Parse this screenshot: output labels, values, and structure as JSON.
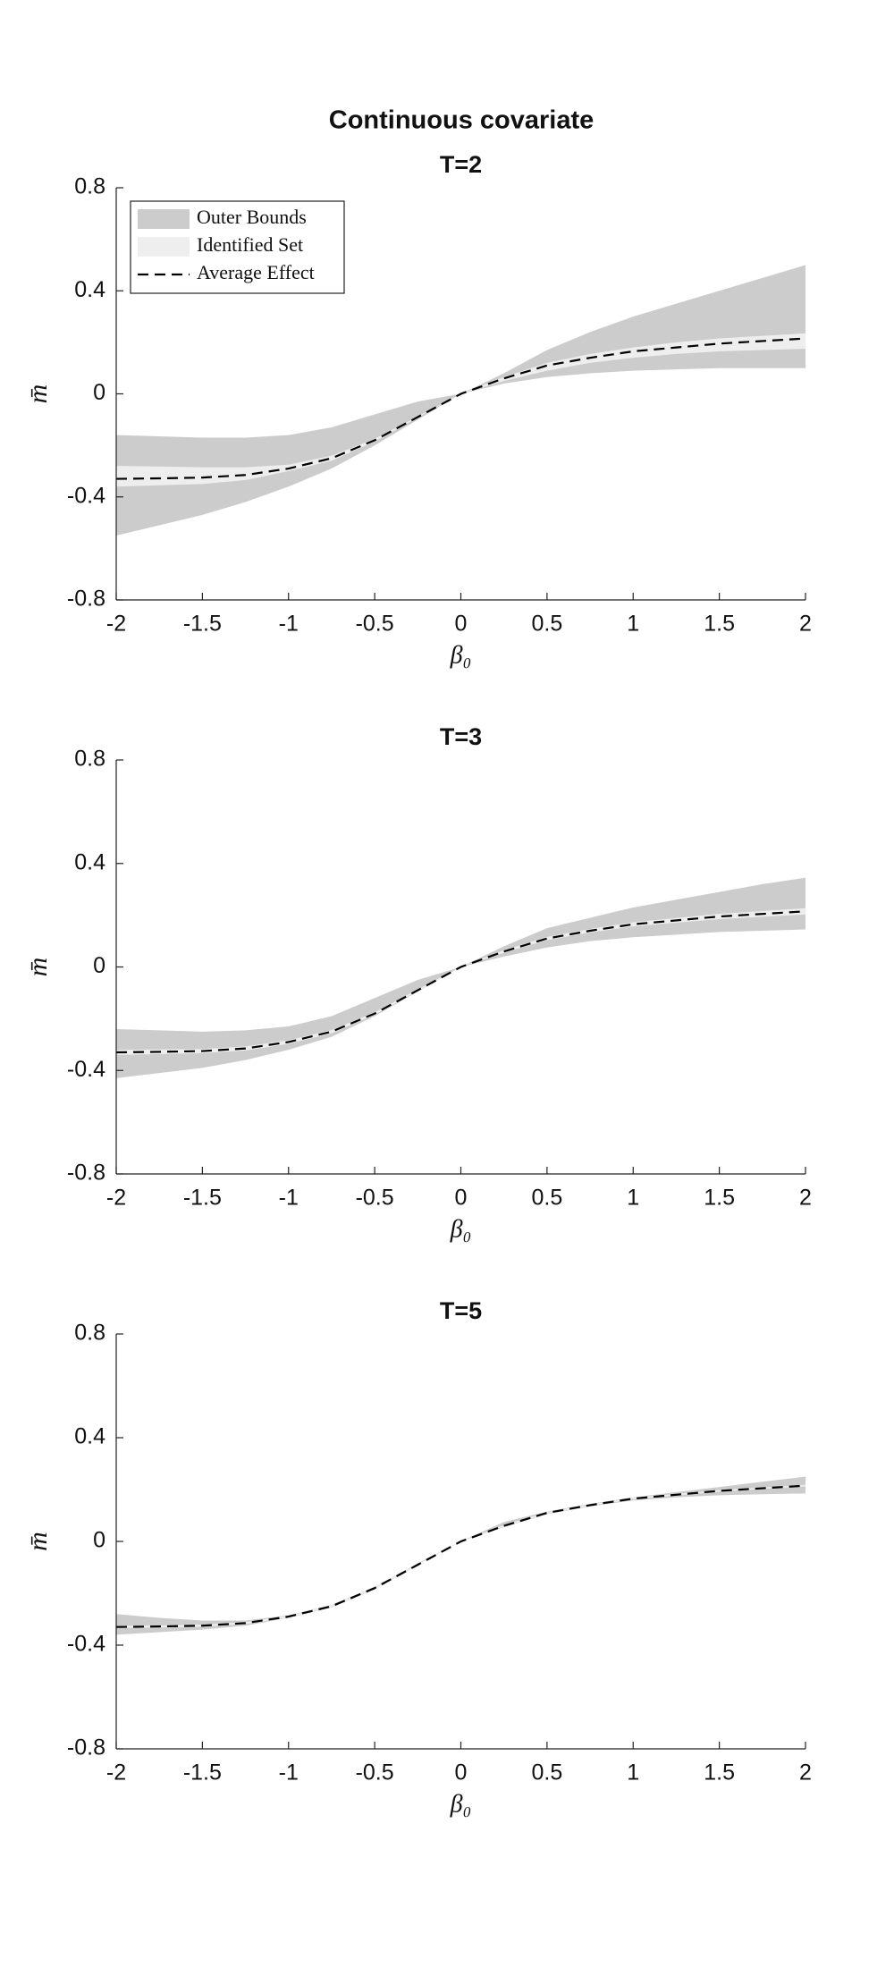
{
  "title": "Continuous covariate",
  "chart_data": [
    {
      "type": "band",
      "title": "T=2",
      "xlabel": "β₀",
      "ylabel": "m̄",
      "x": [
        -2,
        -1.75,
        -1.5,
        -1.25,
        -1,
        -0.75,
        -0.5,
        -0.25,
        0,
        0.25,
        0.5,
        0.75,
        1,
        1.25,
        1.5,
        1.75,
        2
      ],
      "xlim": [
        -2,
        2
      ],
      "xticks": [
        -2,
        -1.5,
        -1,
        -0.5,
        0,
        0.5,
        1,
        1.5,
        2
      ],
      "ylim": [
        -0.8,
        0.8
      ],
      "yticks": [
        -0.8,
        -0.4,
        0,
        0.4,
        0.8
      ],
      "legend": "upper left",
      "series": [
        {
          "name": "Outer Bounds",
          "type": "band",
          "color": "#cccccc",
          "lower": [
            -0.55,
            -0.51,
            -0.47,
            -0.42,
            -0.36,
            -0.29,
            -0.2,
            -0.1,
            0,
            0.04,
            0.065,
            0.08,
            0.09,
            0.095,
            0.1,
            0.1,
            0.1
          ],
          "upper": [
            -0.16,
            -0.165,
            -0.17,
            -0.17,
            -0.16,
            -0.13,
            -0.08,
            -0.03,
            0,
            0.08,
            0.17,
            0.24,
            0.3,
            0.35,
            0.4,
            0.45,
            0.5
          ]
        },
        {
          "name": "Identified Set",
          "type": "band",
          "color": "#eeeeee",
          "lower": [
            -0.36,
            -0.355,
            -0.35,
            -0.335,
            -0.3,
            -0.26,
            -0.185,
            -0.092,
            0,
            0.05,
            0.09,
            0.12,
            0.14,
            0.155,
            0.165,
            0.17,
            0.175
          ],
          "upper": [
            -0.28,
            -0.282,
            -0.285,
            -0.285,
            -0.275,
            -0.24,
            -0.175,
            -0.088,
            0,
            0.065,
            0.12,
            0.155,
            0.18,
            0.2,
            0.215,
            0.225,
            0.235
          ]
        },
        {
          "name": "Average Effect",
          "type": "line",
          "color": "#000000",
          "dashed": true,
          "values": [
            -0.33,
            -0.328,
            -0.325,
            -0.315,
            -0.29,
            -0.25,
            -0.18,
            -0.09,
            0,
            0.06,
            0.11,
            0.14,
            0.165,
            0.18,
            0.195,
            0.205,
            0.215
          ]
        }
      ]
    },
    {
      "type": "band",
      "title": "T=3",
      "xlabel": "β₀",
      "ylabel": "m̄",
      "x": [
        -2,
        -1.75,
        -1.5,
        -1.25,
        -1,
        -0.75,
        -0.5,
        -0.25,
        0,
        0.25,
        0.5,
        0.75,
        1,
        1.25,
        1.5,
        1.75,
        2
      ],
      "xlim": [
        -2,
        2
      ],
      "xticks": [
        -2,
        -1.5,
        -1,
        -0.5,
        0,
        0.5,
        1,
        1.5,
        2
      ],
      "ylim": [
        -0.8,
        0.8
      ],
      "yticks": [
        -0.8,
        -0.4,
        0,
        0.4,
        0.8
      ],
      "series": [
        {
          "name": "Outer Bounds",
          "type": "band",
          "color": "#cccccc",
          "lower": [
            -0.43,
            -0.41,
            -0.39,
            -0.36,
            -0.32,
            -0.27,
            -0.19,
            -0.095,
            0,
            0.04,
            0.075,
            0.1,
            0.115,
            0.125,
            0.135,
            0.14,
            0.145
          ],
          "upper": [
            -0.24,
            -0.245,
            -0.25,
            -0.245,
            -0.23,
            -0.19,
            -0.12,
            -0.05,
            0,
            0.08,
            0.15,
            0.19,
            0.23,
            0.26,
            0.29,
            0.32,
            0.345
          ]
        },
        {
          "name": "Identified Set",
          "type": "band",
          "color": "#eeeeee",
          "lower": [
            -0.34,
            -0.337,
            -0.333,
            -0.323,
            -0.297,
            -0.256,
            -0.185,
            -0.093,
            0,
            0.055,
            0.104,
            0.133,
            0.157,
            0.171,
            0.185,
            0.194,
            0.203
          ],
          "upper": [
            -0.32,
            -0.319,
            -0.317,
            -0.307,
            -0.283,
            -0.244,
            -0.175,
            -0.087,
            0,
            0.065,
            0.116,
            0.147,
            0.173,
            0.189,
            0.205,
            0.216,
            0.227
          ]
        },
        {
          "name": "Average Effect",
          "type": "line",
          "color": "#000000",
          "dashed": true,
          "values": [
            -0.33,
            -0.328,
            -0.325,
            -0.315,
            -0.29,
            -0.25,
            -0.18,
            -0.09,
            0,
            0.06,
            0.11,
            0.14,
            0.165,
            0.18,
            0.195,
            0.205,
            0.215
          ]
        }
      ]
    },
    {
      "type": "band",
      "title": "T=5",
      "xlabel": "β₀",
      "ylabel": "m̄",
      "x": [
        -2,
        -1.75,
        -1.5,
        -1.25,
        -1,
        -0.75,
        -0.5,
        -0.25,
        0,
        0.25,
        0.5,
        0.75,
        1,
        1.25,
        1.5,
        1.75,
        2
      ],
      "xlim": [
        -2,
        2
      ],
      "xticks": [
        -2,
        -1.5,
        -1,
        -0.5,
        0,
        0.5,
        1,
        1.5,
        2
      ],
      "ylim": [
        -0.8,
        0.8
      ],
      "yticks": [
        -0.8,
        -0.4,
        0,
        0.4,
        0.8
      ],
      "series": [
        {
          "name": "Outer Bounds",
          "type": "band",
          "color": "#cccccc",
          "lower": [
            -0.36,
            -0.35,
            -0.34,
            -0.325,
            -0.295,
            -0.255,
            -0.185,
            -0.092,
            0,
            0.055,
            0.105,
            0.135,
            0.158,
            0.17,
            0.178,
            0.182,
            0.185
          ],
          "upper": [
            -0.28,
            -0.295,
            -0.305,
            -0.305,
            -0.285,
            -0.245,
            -0.175,
            -0.085,
            0,
            0.075,
            0.115,
            0.145,
            0.17,
            0.19,
            0.21,
            0.23,
            0.25
          ]
        },
        {
          "name": "Identified Set",
          "type": "band",
          "color": "#eeeeee",
          "lower": [
            -0.334,
            -0.332,
            -0.329,
            -0.319,
            -0.294,
            -0.254,
            -0.184,
            -0.093,
            0,
            0.057,
            0.107,
            0.137,
            0.162,
            0.177,
            0.192,
            0.202,
            0.212
          ],
          "upper": [
            -0.326,
            -0.324,
            -0.321,
            -0.311,
            -0.286,
            -0.246,
            -0.176,
            -0.087,
            0,
            0.063,
            0.113,
            0.143,
            0.168,
            0.183,
            0.198,
            0.208,
            0.218
          ]
        },
        {
          "name": "Average Effect",
          "type": "line",
          "color": "#000000",
          "dashed": true,
          "values": [
            -0.33,
            -0.328,
            -0.325,
            -0.315,
            -0.29,
            -0.25,
            -0.18,
            -0.09,
            0,
            0.06,
            0.11,
            0.14,
            0.165,
            0.18,
            0.195,
            0.205,
            0.215
          ]
        }
      ]
    }
  ]
}
